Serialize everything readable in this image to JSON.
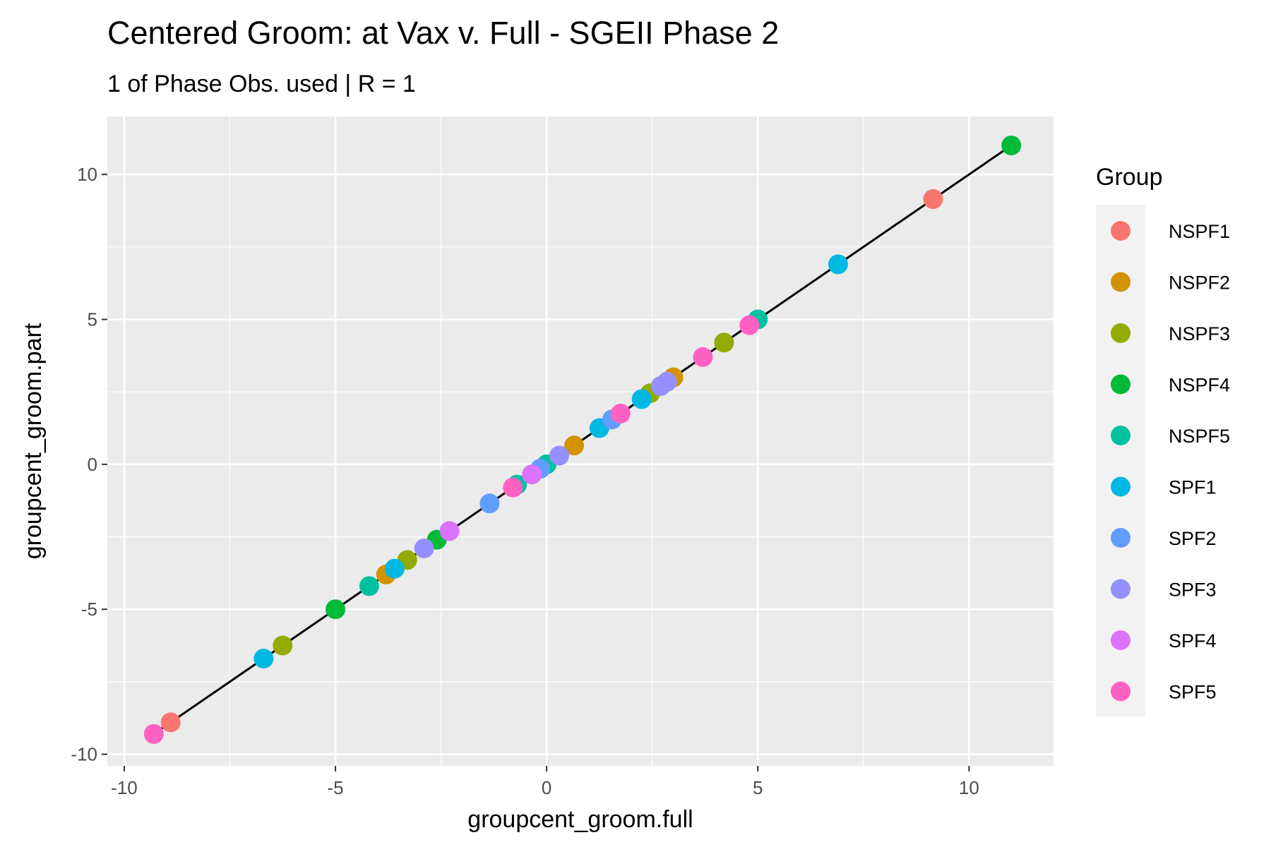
{
  "chart_data": {
    "type": "scatter",
    "title": "Centered Groom: at Vax v. Full - SGEII Phase 2",
    "subtitle": "1 of Phase Obs. used | R = 1",
    "xlabel": "groupcent_groom.full",
    "ylabel": "groupcent_groom.part",
    "xlim": [
      -10.4,
      12
    ],
    "ylim": [
      -10.4,
      12
    ],
    "x_ticks": [
      -10,
      -5,
      0,
      5,
      10
    ],
    "y_ticks": [
      -10,
      -5,
      0,
      5,
      10
    ],
    "x_tick_labels": [
      "-10",
      "-5",
      "0",
      "5",
      "10"
    ],
    "y_tick_labels": [
      "-10",
      "-5",
      "0",
      "5",
      "10"
    ],
    "grid": true,
    "legend": {
      "title": "Group",
      "position": "right"
    },
    "fit_line": {
      "x": [
        -9.3,
        11
      ],
      "y": [
        -9.3,
        11
      ],
      "color": "#000000"
    },
    "series": [
      {
        "name": "NSPF1",
        "color": "#F8766D",
        "points": [
          [
            -8.9,
            -8.9
          ],
          [
            9.15,
            9.15
          ]
        ]
      },
      {
        "name": "NSPF2",
        "color": "#D39200",
        "points": [
          [
            -3.8,
            -3.8
          ],
          [
            0.65,
            0.65
          ],
          [
            3.0,
            3.0
          ]
        ]
      },
      {
        "name": "NSPF3",
        "color": "#93AA00",
        "points": [
          [
            -6.25,
            -6.25
          ],
          [
            -3.3,
            -3.3
          ],
          [
            2.45,
            2.45
          ],
          [
            4.2,
            4.2
          ]
        ]
      },
      {
        "name": "NSPF4",
        "color": "#00BA38",
        "points": [
          [
            -5.0,
            -5.0
          ],
          [
            -2.6,
            -2.6
          ],
          [
            11.0,
            11.0
          ]
        ]
      },
      {
        "name": "NSPF5",
        "color": "#00C19F",
        "points": [
          [
            -4.2,
            -4.2
          ],
          [
            -0.7,
            -0.7
          ],
          [
            0.0,
            0.0
          ],
          [
            5.0,
            5.0
          ]
        ]
      },
      {
        "name": "SPF1",
        "color": "#00B9E3",
        "points": [
          [
            -6.7,
            -6.7
          ],
          [
            -3.6,
            -3.6
          ],
          [
            1.25,
            1.25
          ],
          [
            2.25,
            2.25
          ],
          [
            6.9,
            6.9
          ]
        ]
      },
      {
        "name": "SPF2",
        "color": "#619CFF",
        "points": [
          [
            -1.35,
            -1.35
          ],
          [
            -0.15,
            -0.15
          ],
          [
            1.55,
            1.55
          ]
        ]
      },
      {
        "name": "SPF3",
        "color": "#9590FF",
        "points": [
          [
            -2.9,
            -2.9
          ],
          [
            0.3,
            0.3
          ],
          [
            2.7,
            2.7
          ],
          [
            2.85,
            2.85
          ]
        ]
      },
      {
        "name": "SPF4",
        "color": "#DB72FB",
        "points": [
          [
            -2.3,
            -2.3
          ],
          [
            -0.35,
            -0.35
          ]
        ]
      },
      {
        "name": "SPF5",
        "color": "#FF61C3",
        "points": [
          [
            -9.3,
            -9.3
          ],
          [
            -0.8,
            -0.8
          ],
          [
            1.75,
            1.75
          ],
          [
            3.7,
            3.7
          ],
          [
            4.8,
            4.8
          ]
        ]
      }
    ]
  }
}
